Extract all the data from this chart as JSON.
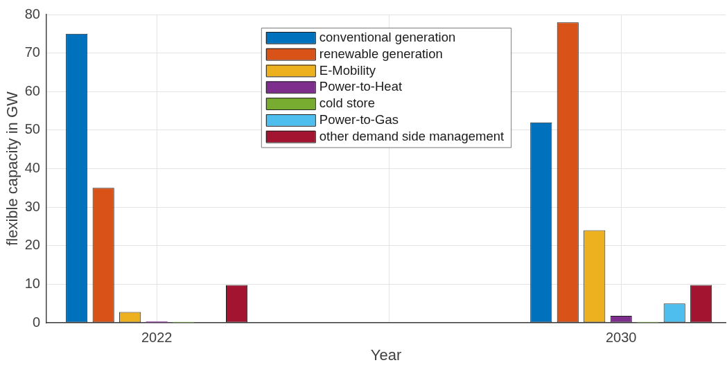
{
  "chart_data": {
    "type": "bar",
    "xlabel": "Year",
    "ylabel": "flexible capacity in GW",
    "x": [
      2022,
      2030
    ],
    "series": [
      {
        "name": "conventional generation",
        "color": "#0072bd",
        "values": [
          75,
          52
        ]
      },
      {
        "name": "renewable generation",
        "color": "#d95319",
        "values": [
          35,
          78
        ]
      },
      {
        "name": "E-Mobility",
        "color": "#edb120",
        "values": [
          2.8,
          24
        ]
      },
      {
        "name": "Power-to-Heat",
        "color": "#7e2f8e",
        "values": [
          0.3,
          1.8
        ]
      },
      {
        "name": "cold store",
        "color": "#77ac30",
        "values": [
          0.2,
          0.2
        ]
      },
      {
        "name": "Power-to-Gas",
        "color": "#4dbeee",
        "values": [
          0,
          5
        ]
      },
      {
        "name": "other demand side management",
        "color": "#a2142f",
        "values": [
          9.8,
          9.8
        ]
      }
    ],
    "xlim": [
      2020.1,
      2031.8
    ],
    "xticks": [
      2022,
      {
        "value": 2026,
        "label": null
      },
      2030
    ],
    "ylim": [
      0,
      80
    ],
    "yticks": [
      0,
      10,
      20,
      30,
      40,
      50,
      60,
      70,
      80
    ],
    "grid": true,
    "legend": "top"
  }
}
